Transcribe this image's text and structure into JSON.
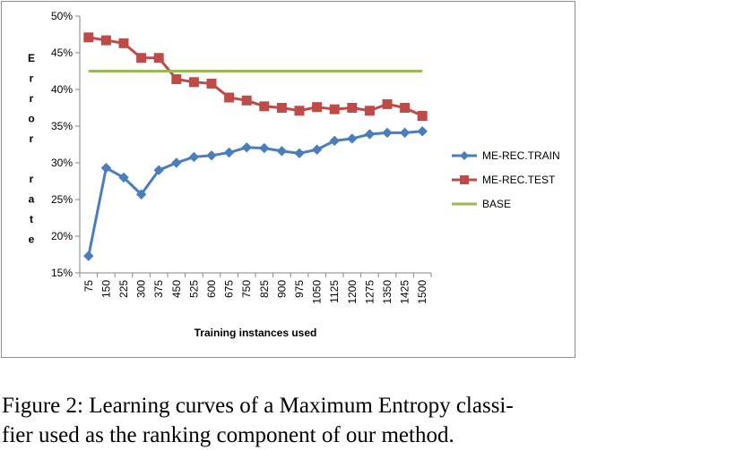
{
  "chart_data": {
    "type": "line",
    "x": [
      "75",
      "150",
      "225",
      "300",
      "375",
      "450",
      "525",
      "600",
      "675",
      "750",
      "825",
      "900",
      "975",
      "1050",
      "1125",
      "1200",
      "1275",
      "1350",
      "1425",
      "1500"
    ],
    "xlabel": "Training instances used",
    "ylabel": "Error rate",
    "ylabel_letters": [
      "E",
      "r",
      "r",
      "o",
      "r",
      "",
      "r",
      "a",
      "t",
      "e"
    ],
    "ylim": [
      15,
      50
    ],
    "yticks": [
      15,
      20,
      25,
      30,
      35,
      40,
      45,
      50
    ],
    "ytick_labels": [
      "15%",
      "20%",
      "25%",
      "30%",
      "35%",
      "40%",
      "45%",
      "50%"
    ],
    "grid": false,
    "legend_position": "right",
    "series": [
      {
        "name": "ME-REC.TRAIN",
        "color": "#4a7ebb",
        "marker": "diamond",
        "values": [
          17.3,
          29.3,
          28.0,
          25.7,
          29.0,
          30.0,
          30.8,
          31.0,
          31.4,
          32.1,
          32.0,
          31.6,
          31.3,
          31.8,
          33.0,
          33.3,
          33.9,
          34.1,
          34.1,
          34.3
        ]
      },
      {
        "name": "ME-REC.TEST",
        "color": "#be4b48",
        "marker": "square",
        "values": [
          47.1,
          46.7,
          46.3,
          44.3,
          44.3,
          41.4,
          41.0,
          40.8,
          38.9,
          38.5,
          37.7,
          37.5,
          37.1,
          37.6,
          37.3,
          37.5,
          37.1,
          38.0,
          37.5,
          36.4
        ]
      },
      {
        "name": "BASE",
        "color": "#98b954",
        "marker": "none",
        "values": [
          42.5,
          42.5,
          42.5,
          42.5,
          42.5,
          42.5,
          42.5,
          42.5,
          42.5,
          42.5,
          42.5,
          42.5,
          42.5,
          42.5,
          42.5,
          42.5,
          42.5,
          42.5,
          42.5,
          42.5
        ]
      }
    ]
  },
  "caption": {
    "line1": "Figure 2: Learning curves of a Maximum Entropy classi-",
    "line2": "fier used as the ranking component of our method."
  }
}
